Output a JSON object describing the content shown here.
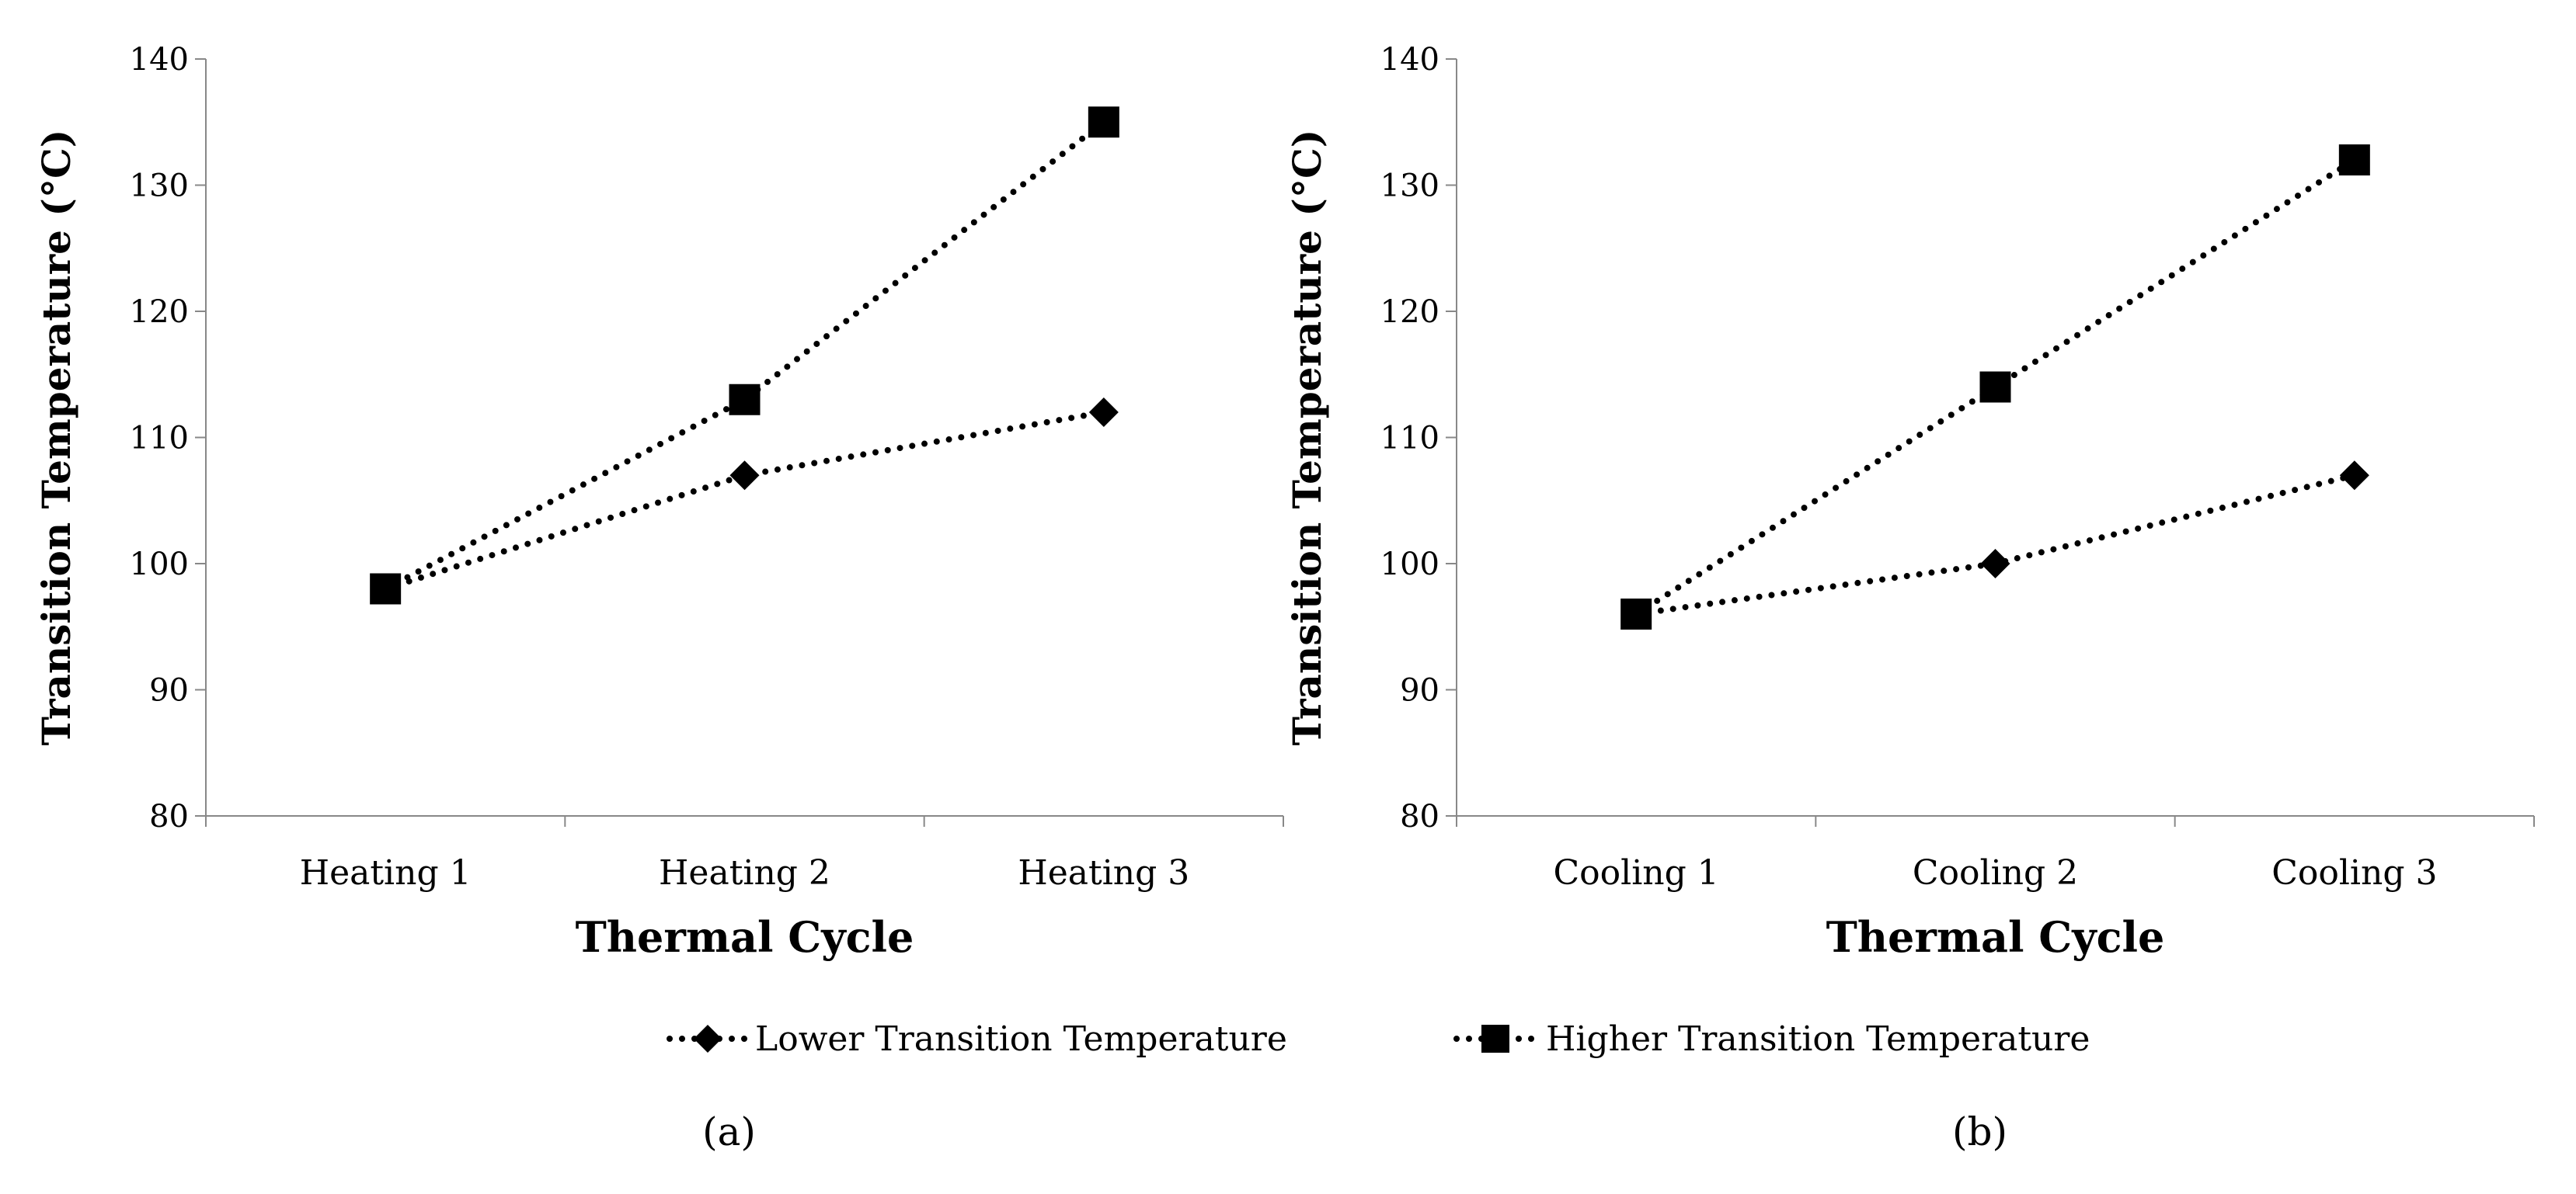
{
  "chart_data": [
    {
      "type": "line",
      "panel_label": "(a)",
      "categories": [
        "Heating 1",
        "Heating 2",
        "Heating 3"
      ],
      "xlabel": "Thermal Cycle",
      "ylabel": "Transition  Temperature (°C)",
      "ylim": [
        80,
        140
      ],
      "yticks": [
        "80",
        "90",
        "100",
        "110",
        "120",
        "130",
        "140"
      ],
      "grid": false,
      "series": [
        {
          "name": "Lower Transition Temperature",
          "marker": "diamond",
          "values": [
            98,
            107,
            112
          ]
        },
        {
          "name": "Higher Transition Temperature",
          "marker": "square",
          "values": [
            98,
            113,
            135
          ]
        }
      ]
    },
    {
      "type": "line",
      "panel_label": "(b)",
      "categories": [
        "Cooling 1",
        "Cooling 2",
        "Cooling 3"
      ],
      "xlabel": "Thermal Cycle",
      "ylabel": "Transition  Temperature (°C)",
      "ylim": [
        80,
        140
      ],
      "yticks": [
        "80",
        "90",
        "100",
        "110",
        "120",
        "130",
        "140"
      ],
      "grid": false,
      "series": [
        {
          "name": "Lower Transition Temperature",
          "marker": "diamond",
          "values": [
            96,
            100,
            107
          ]
        },
        {
          "name": "Higher Transition Temperature",
          "marker": "square",
          "values": [
            96,
            114,
            132
          ]
        }
      ]
    }
  ],
  "legend": {
    "placement": "bottom",
    "items": [
      "Lower Transition Temperature",
      "Higher Transition Temperature"
    ]
  },
  "colors": {
    "line": "#000000",
    "axis": "#888888"
  }
}
